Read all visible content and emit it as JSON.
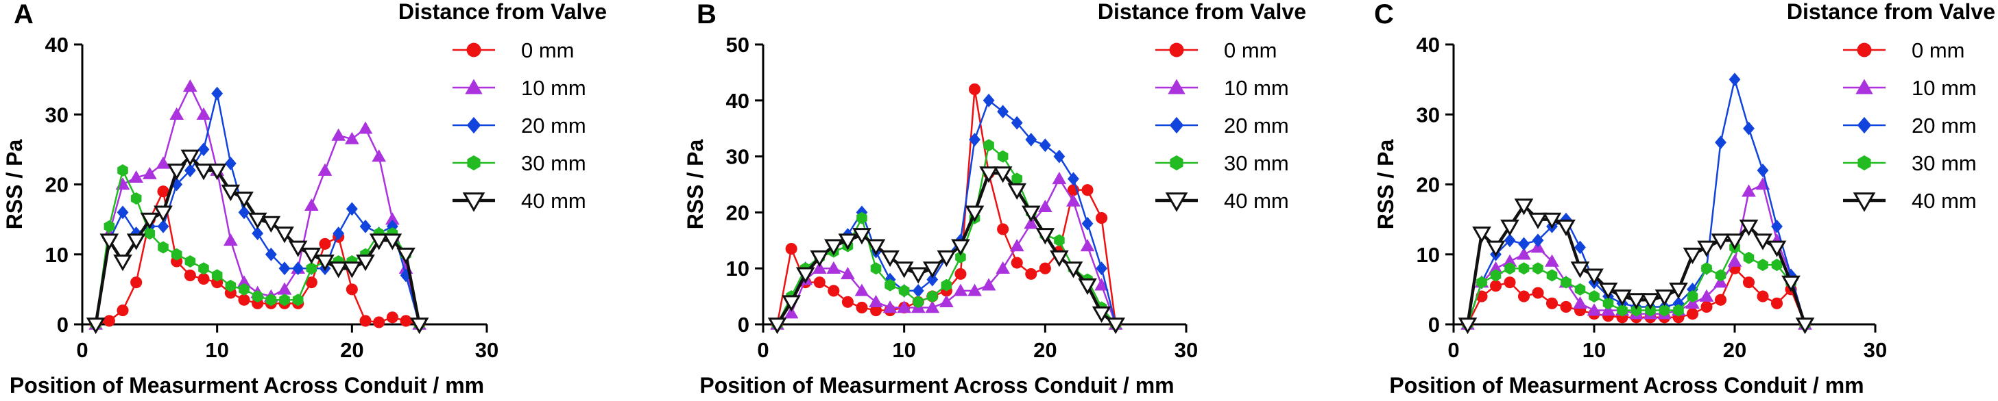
{
  "chart_data": [
    {
      "type": "line",
      "panel_label": "A",
      "xlabel": "Position of Measurment Across Conduit / mm",
      "ylabel": "RSS / Pa",
      "xlim": [
        0,
        30
      ],
      "ylim": [
        0,
        40
      ],
      "xticks": [
        0,
        10,
        20,
        30
      ],
      "yticks": [
        0,
        10,
        20,
        30,
        40
      ],
      "grid": false,
      "legend_title": "Distance from Valve",
      "legend_position": "top-right",
      "x": [
        1,
        2,
        3,
        4,
        5,
        6,
        7,
        8,
        9,
        10,
        11,
        12,
        13,
        14,
        15,
        16,
        17,
        18,
        19,
        20,
        21,
        22,
        23,
        24,
        25
      ],
      "series": [
        {
          "name": "0 mm",
          "color": "#ee1111",
          "marker": "circle",
          "values": [
            0,
            0.5,
            2,
            6,
            15,
            19,
            9,
            7,
            6.5,
            6,
            4.5,
            3.5,
            3,
            3,
            3,
            3,
            6,
            11.5,
            12.5,
            5,
            0.5,
            0.3,
            1,
            0.5,
            0
          ]
        },
        {
          "name": "10 mm",
          "color": "#aa33dd",
          "marker": "triangle",
          "values": [
            0,
            13,
            20,
            21,
            21.5,
            23,
            30,
            34,
            30,
            22,
            12,
            6,
            4.5,
            4,
            5,
            8,
            17,
            22,
            27,
            26.5,
            28,
            24,
            15,
            8,
            0
          ]
        },
        {
          "name": "20 mm",
          "color": "#1144dd",
          "marker": "diamond",
          "values": [
            0,
            12,
            16,
            13,
            14,
            14,
            20,
            22,
            25,
            33,
            23,
            16,
            13,
            10,
            8,
            8,
            8,
            8,
            13,
            16.5,
            14,
            13,
            14,
            7,
            0
          ]
        },
        {
          "name": "30 mm",
          "color": "#22bb22",
          "marker": "hexagon",
          "values": [
            0,
            14,
            22,
            18,
            13,
            11,
            10,
            9,
            8,
            7,
            5.5,
            5,
            4,
            3.5,
            3.5,
            3.5,
            8,
            9,
            9,
            9,
            10,
            13,
            13,
            10,
            0
          ]
        },
        {
          "name": "40 mm",
          "color": "#111111",
          "marker": "triangle-down",
          "values": [
            0,
            12,
            9,
            12,
            15,
            16,
            22,
            24,
            22,
            22,
            19,
            18,
            15,
            14.5,
            13,
            11,
            10,
            9,
            8,
            8,
            9,
            12,
            12,
            10,
            0
          ]
        }
      ]
    },
    {
      "type": "line",
      "panel_label": "B",
      "xlabel": "Position of Measurment Across Conduit / mm",
      "ylabel": "RSS / Pa",
      "xlim": [
        0,
        30
      ],
      "ylim": [
        0,
        50
      ],
      "xticks": [
        0,
        10,
        20,
        30
      ],
      "yticks": [
        0,
        10,
        20,
        30,
        40,
        50
      ],
      "grid": false,
      "legend_title": "Distance from Valve",
      "legend_position": "top-right",
      "x": [
        1,
        2,
        3,
        4,
        5,
        6,
        7,
        8,
        9,
        10,
        11,
        12,
        13,
        14,
        15,
        16,
        17,
        18,
        19,
        20,
        21,
        22,
        23,
        24,
        25
      ],
      "series": [
        {
          "name": "0 mm",
          "color": "#ee1111",
          "marker": "circle",
          "values": [
            0,
            13.5,
            7.5,
            7.5,
            6,
            4,
            3,
            2.5,
            2.5,
            3,
            4,
            5,
            6,
            9,
            42,
            27,
            17,
            11,
            9,
            10,
            13,
            24,
            24,
            19,
            0
          ]
        },
        {
          "name": "10 mm",
          "color": "#aa33dd",
          "marker": "triangle",
          "values": [
            0,
            2,
            8,
            10,
            10,
            9,
            6,
            4,
            3,
            3,
            3,
            3,
            4,
            6,
            6,
            7,
            10,
            14,
            18,
            21,
            26,
            22,
            14,
            7,
            0
          ]
        },
        {
          "name": "20 mm",
          "color": "#1144dd",
          "marker": "diamond",
          "values": [
            0,
            4,
            10,
            12,
            14,
            16,
            20,
            13,
            8,
            6,
            6,
            8,
            12,
            15,
            33,
            40,
            38,
            36,
            33,
            32,
            30,
            26,
            18,
            10,
            0
          ]
        },
        {
          "name": "30 mm",
          "color": "#22bb22",
          "marker": "hexagon",
          "values": [
            0,
            5,
            10,
            12,
            13,
            14,
            19,
            10,
            7,
            6,
            4,
            5,
            7,
            12,
            19,
            32,
            30,
            26,
            20,
            16,
            15,
            10,
            8,
            3,
            0
          ]
        },
        {
          "name": "40 mm",
          "color": "#111111",
          "marker": "triangle-down",
          "values": [
            0,
            4,
            9,
            12,
            14,
            15,
            16,
            14,
            12,
            10,
            9,
            10,
            12,
            14,
            20,
            27,
            27,
            24,
            20,
            16,
            12,
            10,
            7,
            2,
            0
          ]
        }
      ]
    },
    {
      "type": "line",
      "panel_label": "C",
      "xlabel": "Position of Measurment Across Conduit / mm",
      "ylabel": "RSS / Pa",
      "xlim": [
        0,
        30
      ],
      "ylim": [
        0,
        40
      ],
      "xticks": [
        0,
        10,
        20,
        30
      ],
      "yticks": [
        0,
        10,
        20,
        30,
        40
      ],
      "grid": false,
      "legend_title": "Distance from Valve",
      "legend_position": "top-right",
      "x": [
        1,
        2,
        3,
        4,
        5,
        6,
        7,
        8,
        9,
        10,
        11,
        12,
        13,
        14,
        15,
        16,
        17,
        18,
        19,
        20,
        21,
        22,
        23,
        24,
        25
      ],
      "series": [
        {
          "name": "0 mm",
          "color": "#ee1111",
          "marker": "circle",
          "values": [
            0,
            4,
            5.5,
            6,
            4,
            4.5,
            3,
            2.5,
            2,
            1.5,
            1.2,
            1,
            1,
            1,
            1,
            1,
            1.5,
            2.5,
            3.5,
            8,
            6,
            4,
            3,
            5,
            0
          ]
        },
        {
          "name": "10 mm",
          "color": "#aa33dd",
          "marker": "triangle",
          "values": [
            0,
            6,
            8,
            9,
            10,
            11,
            9,
            6,
            3,
            2,
            2,
            2,
            1.5,
            1.5,
            1.5,
            2,
            3,
            4,
            6,
            9,
            19,
            20,
            12,
            7,
            0
          ]
        },
        {
          "name": "20 mm",
          "color": "#1144dd",
          "marker": "diamond",
          "values": [
            0,
            6,
            10,
            12,
            11.5,
            12,
            14,
            15,
            11,
            6,
            4,
            3,
            2.5,
            2.5,
            2.5,
            3,
            5,
            8,
            26,
            35,
            28,
            22,
            14,
            7,
            0
          ]
        },
        {
          "name": "30 mm",
          "color": "#22bb22",
          "marker": "hexagon",
          "values": [
            0,
            6,
            7,
            8,
            8,
            8,
            7,
            6,
            5,
            4,
            3,
            2,
            2,
            2,
            2,
            2,
            4,
            8,
            7,
            11,
            9.5,
            8.5,
            8.5,
            6,
            0
          ]
        },
        {
          "name": "40 mm",
          "color": "#111111",
          "marker": "triangle-down",
          "values": [
            0,
            13,
            11,
            14,
            17,
            15,
            15,
            14,
            8,
            7,
            5,
            4,
            3.5,
            3.5,
            4,
            5,
            10,
            11,
            12,
            12,
            14,
            12,
            11,
            6,
            0
          ]
        }
      ]
    }
  ]
}
